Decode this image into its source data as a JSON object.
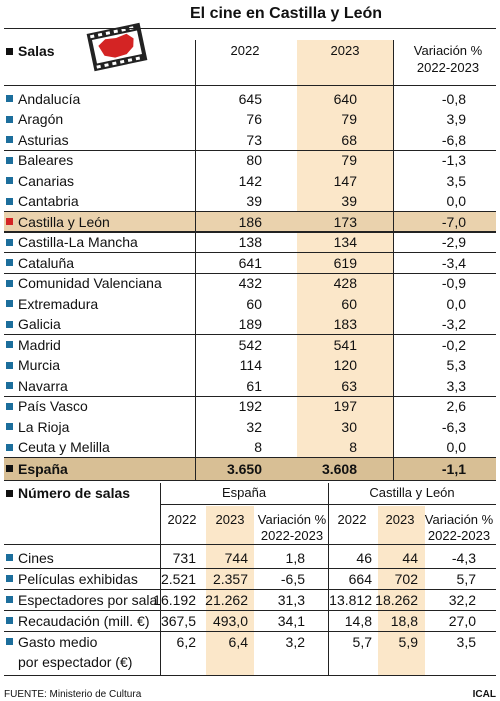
{
  "header": {
    "title": "El cine en Castilla y León"
  },
  "salas": {
    "label": "Salas",
    "y1": "2022",
    "y2": "2023",
    "variation": [
      "Variación %",
      "2022-2023"
    ],
    "rows": [
      [
        "Andalucía",
        "645",
        "640",
        "-0,8"
      ],
      [
        "Aragón",
        "76",
        "79",
        "3,9"
      ],
      [
        "Asturias",
        "73",
        "68",
        "-6,8"
      ],
      [
        "Baleares",
        "80",
        "79",
        "-1,3"
      ],
      [
        "Canarias",
        "142",
        "147",
        "3,5"
      ],
      [
        "Cantabria",
        "39",
        "39",
        "0,0"
      ],
      [
        "Castilla y León",
        "186",
        "173",
        "-7,0"
      ],
      [
        "Castilla-La Mancha",
        "138",
        "134",
        "-2,9"
      ],
      [
        "Cataluña",
        "641",
        "619",
        "-3,4"
      ],
      [
        "Comunidad Valenciana",
        "432",
        "428",
        "-0,9"
      ],
      [
        "Extremadura",
        "60",
        "60",
        "0,0"
      ],
      [
        "Galicia",
        "189",
        "183",
        "-3,2"
      ],
      [
        "Madrid",
        "542",
        "541",
        "-0,2"
      ],
      [
        "Murcia",
        "114",
        "120",
        "5,3"
      ],
      [
        "Navarra",
        "61",
        "63",
        "3,3"
      ],
      [
        "País Vasco",
        "192",
        "197",
        "2,6"
      ],
      [
        "La Rioja",
        "32",
        "30",
        "-6,3"
      ],
      [
        "Ceuta y Melilla",
        "8",
        "8",
        "0,0"
      ]
    ],
    "total": [
      "España",
      "3.650",
      "3.608",
      "-1,1"
    ]
  },
  "numero": {
    "label": "Número de salas",
    "groups": [
      "España",
      "Castilla y León"
    ],
    "y1": "2022",
    "y2": "2023",
    "variation": [
      "Variación %",
      "2022-2023"
    ],
    "rows": [
      [
        [
          "Cines"
        ],
        "731",
        "744",
        "1,8",
        "46",
        "44",
        "-4,3"
      ],
      [
        [
          "Películas exhibidas"
        ],
        "2.521",
        "2.357",
        "-6,5",
        "664",
        "702",
        "5,7"
      ],
      [
        [
          "Espectadores por sala"
        ],
        "16.192",
        "21.262",
        "31,3",
        "13.812",
        "18.262",
        "32,2"
      ],
      [
        [
          "Recaudación (mill. €)"
        ],
        "367,5",
        "493,0",
        "34,1",
        "14,8",
        "18,8",
        "27,0"
      ],
      [
        [
          "Gasto medio",
          "por espectador (€)"
        ],
        "6,2",
        "6,4",
        "3,2",
        "5,7",
        "5,9",
        "3,5"
      ]
    ]
  },
  "footer": {
    "source": "FUENTE: Ministerio de Cultura",
    "credit": "ICAL"
  }
}
